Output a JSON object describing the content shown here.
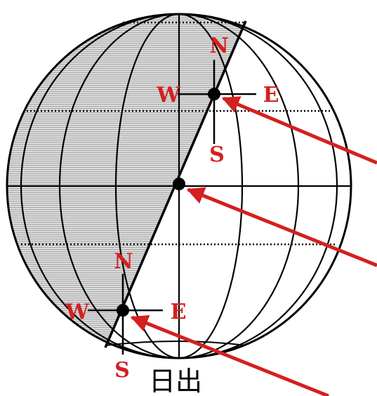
{
  "caption": "日出",
  "compass_upper": {
    "north": "N",
    "south": "S",
    "west": "W",
    "east": "E"
  },
  "compass_lower": {
    "north": "N",
    "south": "S",
    "west": "W",
    "east": "E"
  },
  "colors": {
    "night_fill": "#dcdcdc",
    "night_hatch": "#9a9a9a",
    "outline": "#000000",
    "sun_ray": "#d42020",
    "direction_letters": "#d42020"
  },
  "icons": [
    "globe",
    "terminator-line",
    "sun-ray-arrow",
    "compass-cross"
  ]
}
